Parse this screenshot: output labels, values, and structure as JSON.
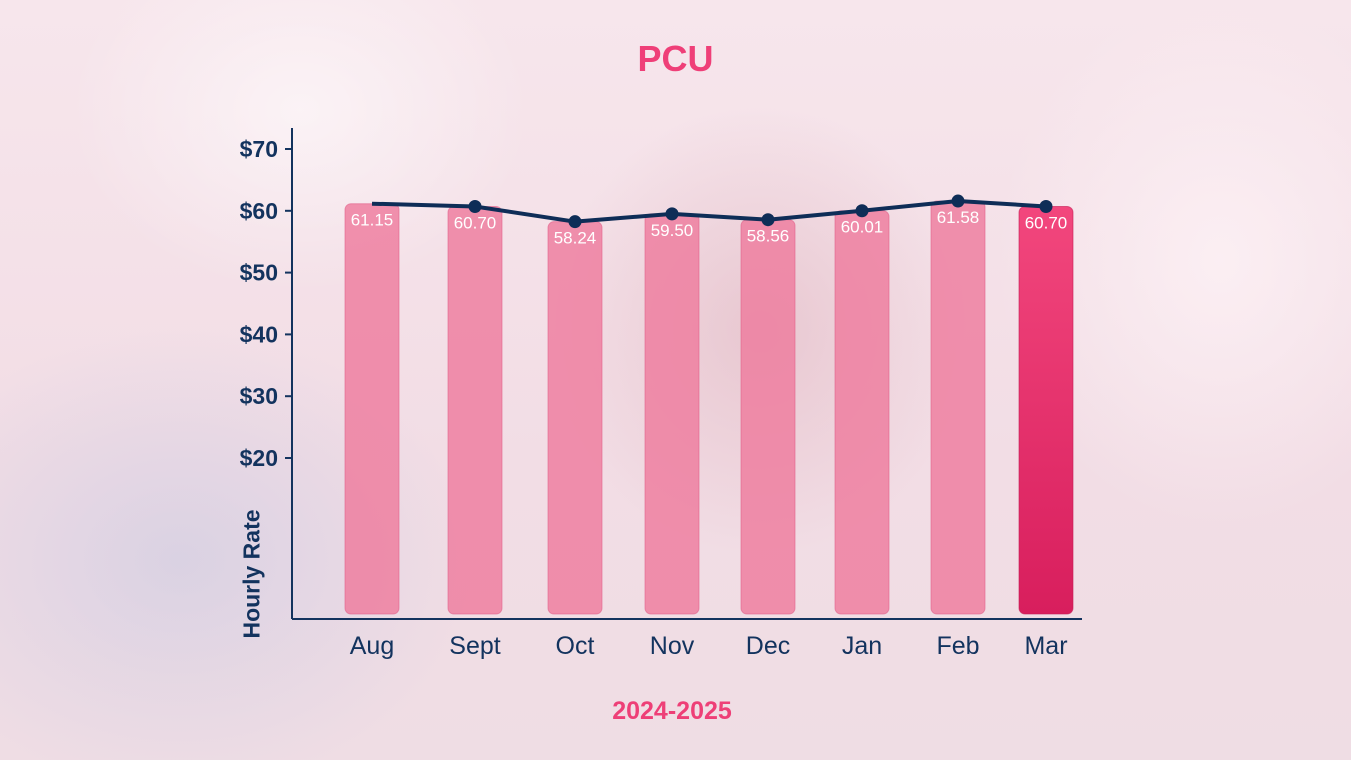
{
  "chart_data": {
    "type": "bar",
    "title": "PCU",
    "xlabel": "2024-2025",
    "ylabel": "Hourly Rate",
    "categories": [
      "Aug",
      "Sept",
      "Oct",
      "Nov",
      "Dec",
      "Jan",
      "Feb",
      "Mar"
    ],
    "values": [
      61.15,
      60.7,
      58.24,
      59.5,
      58.56,
      60.01,
      61.58,
      60.7
    ],
    "data_labels": [
      "61.15",
      "60.70",
      "58.24",
      "59.50",
      "58.56",
      "60.01",
      "61.58",
      "60.70"
    ],
    "line_overlay": true,
    "y_ticks": [
      {
        "value": 20,
        "label": "$20"
      },
      {
        "value": 30,
        "label": "$30"
      },
      {
        "value": 40,
        "label": "$40"
      },
      {
        "value": 50,
        "label": "$50"
      },
      {
        "value": 60,
        "label": "$60"
      },
      {
        "value": 70,
        "label": "$70"
      }
    ],
    "ylim": [
      0,
      73
    ],
    "grid": false,
    "legend": "none",
    "colors": {
      "bar": "#ee7b9d",
      "highlight_bar": "#e8336a",
      "line": "#0e2d57",
      "axis": "#13335e",
      "title": "#ef3f78"
    }
  }
}
